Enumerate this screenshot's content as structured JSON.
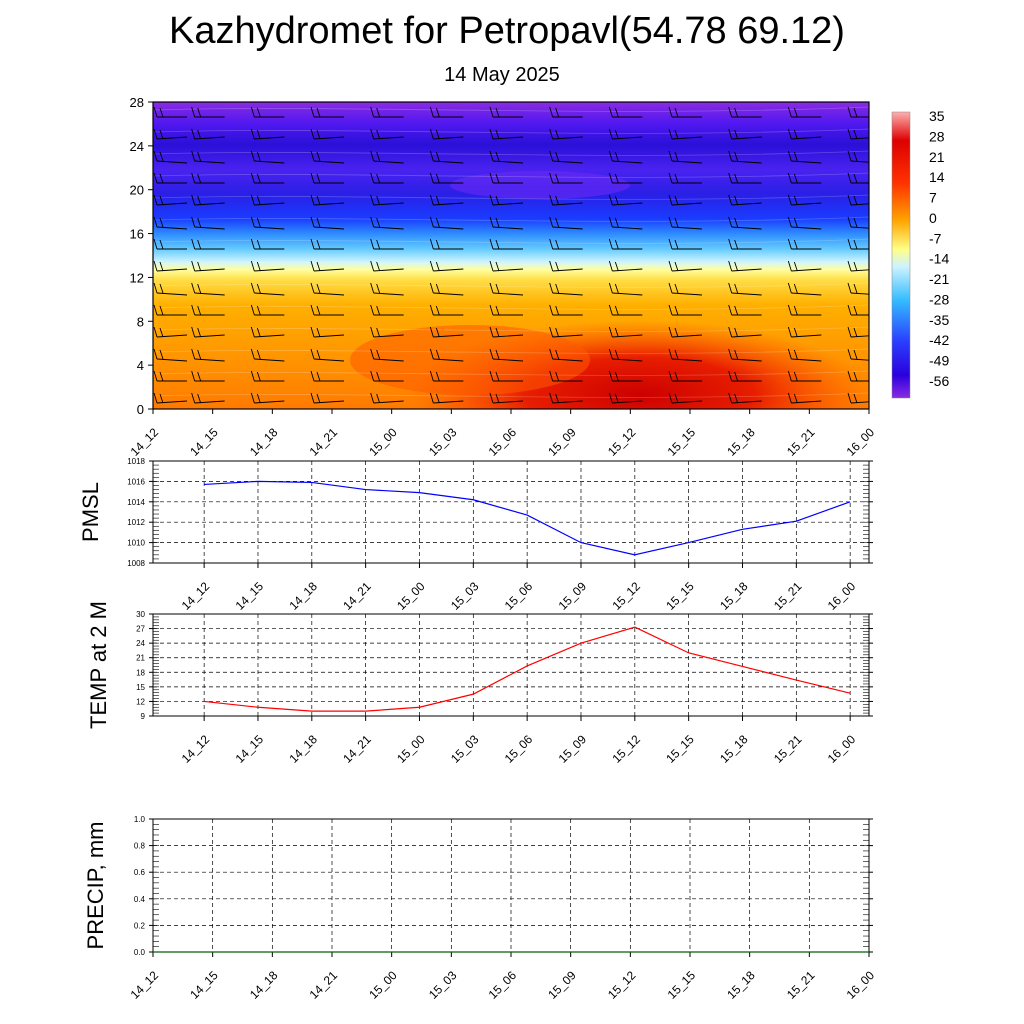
{
  "title": "Kazhydromet for Petropavl(54.78 69.12)",
  "subtitle": "14 May 2025",
  "time_labels": [
    "14_12",
    "14_15",
    "14_18",
    "14_21",
    "15_00",
    "15_03",
    "15_06",
    "15_09",
    "15_12",
    "15_15",
    "15_18",
    "15_21",
    "16_00"
  ],
  "chart_data": [
    {
      "type": "heatmap",
      "title": "",
      "ylabel": "",
      "y_ticks": [
        0,
        4,
        8,
        12,
        16,
        20,
        24,
        28
      ],
      "ylim": [
        0,
        28
      ],
      "categories": [
        "14_12",
        "14_15",
        "14_18",
        "14_21",
        "15_00",
        "15_03",
        "15_06",
        "15_09",
        "15_12",
        "15_15",
        "15_18",
        "15_21",
        "16_00"
      ],
      "colorbar_labels": [
        "35",
        "28",
        "21",
        "14",
        "7",
        "0",
        "-7",
        "-14",
        "-21",
        "-28",
        "-35",
        "-42",
        "-49",
        "-56"
      ],
      "colors": {
        "hot": "#cc0000",
        "warm": "#ff6a00",
        "mild": "#ffa500",
        "yellow": "#ffff66",
        "cold_light": "#99e6ff",
        "cyan": "#33bbff",
        "blue": "#1a3cff",
        "deep": "#2a00dd",
        "violet": "#8a2be2"
      }
    },
    {
      "type": "line",
      "ylabel": "PMSL",
      "ylim": [
        1008,
        1018
      ],
      "y_ticks": [
        1008,
        1010,
        1012,
        1014,
        1016,
        1018
      ],
      "categories": [
        "14_12",
        "14_15",
        "14_18",
        "14_21",
        "15_00",
        "15_03",
        "15_06",
        "15_09",
        "15_12",
        "15_15",
        "15_18",
        "15_21",
        "16_00"
      ],
      "values": [
        1015.7,
        1016.0,
        1015.9,
        1015.2,
        1014.9,
        1014.2,
        1012.7,
        1010.0,
        1008.8,
        1010.0,
        1011.3,
        1012.1,
        1014.0
      ],
      "color": "#0000ff"
    },
    {
      "type": "line",
      "ylabel": "TEMP at 2 M",
      "ylim": [
        9,
        30
      ],
      "y_ticks": [
        9,
        12,
        15,
        18,
        21,
        24,
        27,
        30
      ],
      "categories": [
        "14_12",
        "14_15",
        "14_18",
        "14_21",
        "15_00",
        "15_03",
        "15_06",
        "15_09",
        "15_12",
        "15_15",
        "15_18",
        "15_21",
        "16_00"
      ],
      "values": [
        12.0,
        10.8,
        10.0,
        10.0,
        10.8,
        13.5,
        19.3,
        24.0,
        27.3,
        22.0,
        19.2,
        16.4,
        13.7
      ],
      "color": "#ff0000"
    },
    {
      "type": "line",
      "ylabel": "PRECIP, mm",
      "ylim": [
        0,
        1
      ],
      "y_ticks": [
        "0.0",
        "0.2",
        "0.4",
        "0.6",
        "0.8",
        "1.0"
      ],
      "categories": [
        "14_12",
        "14_15",
        "14_18",
        "14_21",
        "15_00",
        "15_03",
        "15_06",
        "15_09",
        "15_12",
        "15_15",
        "15_18",
        "15_21",
        "16_00"
      ],
      "values": [
        0,
        0,
        0,
        0,
        0,
        0,
        0,
        0,
        0,
        0,
        0,
        0,
        0
      ],
      "color": "#006400"
    }
  ]
}
